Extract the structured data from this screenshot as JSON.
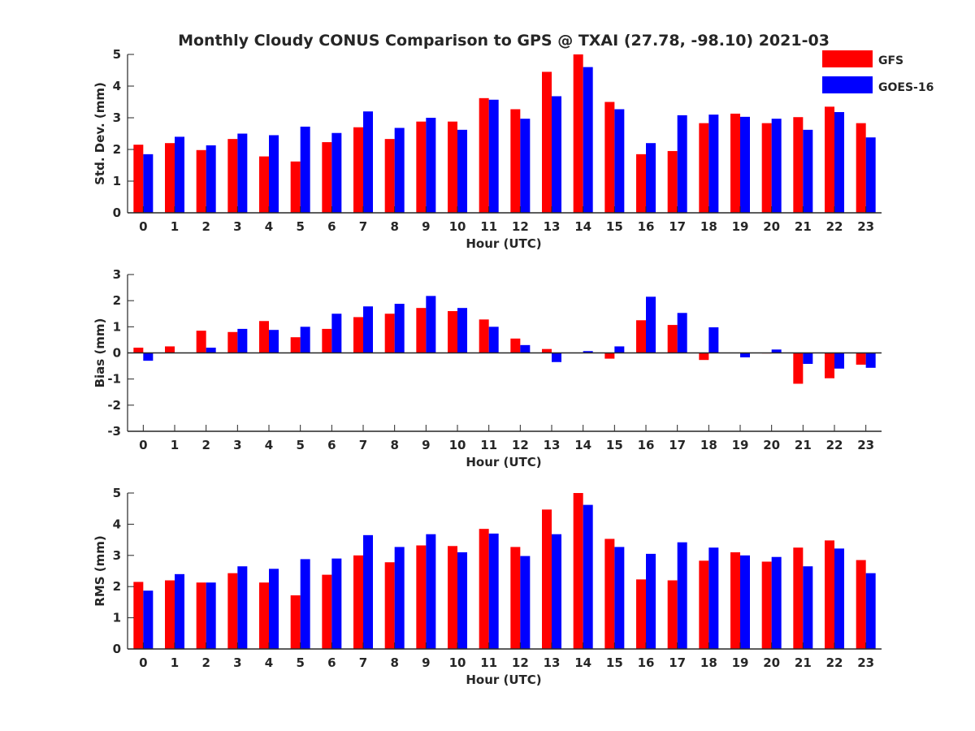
{
  "title": "Monthly Cloudy CONUS Comparison to GPS @ TXAI (27.78, -98.10) 2021-03",
  "legend": [
    {
      "label": "GFS",
      "color": "#ff0000"
    },
    {
      "label": "GOES-16",
      "color": "#0000ff"
    }
  ],
  "chart_data": [
    {
      "type": "bar",
      "name": "std-dev",
      "xlabel": "Hour (UTC)",
      "ylabel": "Std. Dev. (mm)",
      "ylim": [
        0,
        5
      ],
      "yticks": [
        0,
        1,
        2,
        3,
        4,
        5
      ],
      "categories": [
        "0",
        "1",
        "2",
        "3",
        "4",
        "5",
        "6",
        "7",
        "8",
        "9",
        "10",
        "11",
        "12",
        "13",
        "14",
        "15",
        "16",
        "17",
        "18",
        "19",
        "20",
        "21",
        "22",
        "23"
      ],
      "series": [
        {
          "name": "GFS",
          "color": "#ff0000",
          "values": [
            2.15,
            2.2,
            1.98,
            2.33,
            1.78,
            1.62,
            2.23,
            2.7,
            2.33,
            2.88,
            2.88,
            3.62,
            3.27,
            4.45,
            5.0,
            3.5,
            1.85,
            1.95,
            2.83,
            3.13,
            2.83,
            3.02,
            3.35,
            2.83
          ]
        },
        {
          "name": "GOES-16",
          "color": "#0000ff",
          "values": [
            1.85,
            2.4,
            2.13,
            2.5,
            2.45,
            2.72,
            2.52,
            3.2,
            2.68,
            3.0,
            2.62,
            3.57,
            2.97,
            3.68,
            4.6,
            3.27,
            2.2,
            3.08,
            3.1,
            3.03,
            2.97,
            2.62,
            3.18,
            2.38
          ]
        }
      ]
    },
    {
      "type": "bar",
      "name": "bias",
      "xlabel": "Hour (UTC)",
      "ylabel": "Bias (mm)",
      "ylim": [
        -3,
        3
      ],
      "yticks": [
        -3,
        -2,
        -1,
        0,
        1,
        2,
        3
      ],
      "categories": [
        "0",
        "1",
        "2",
        "3",
        "4",
        "5",
        "6",
        "7",
        "8",
        "9",
        "10",
        "11",
        "12",
        "13",
        "14",
        "15",
        "16",
        "17",
        "18",
        "19",
        "20",
        "21",
        "22",
        "23"
      ],
      "series": [
        {
          "name": "GFS",
          "color": "#ff0000",
          "values": [
            0.2,
            0.25,
            0.85,
            0.8,
            1.22,
            0.6,
            0.92,
            1.37,
            1.5,
            1.72,
            1.6,
            1.28,
            0.55,
            0.15,
            0.0,
            -0.22,
            1.25,
            1.07,
            -0.27,
            0.0,
            -0.02,
            -1.18,
            -0.97,
            -0.45
          ]
        },
        {
          "name": "GOES-16",
          "color": "#0000ff",
          "values": [
            -0.3,
            0.0,
            0.2,
            0.92,
            0.88,
            1.0,
            1.5,
            1.78,
            1.88,
            2.18,
            1.72,
            1.0,
            0.3,
            -0.35,
            0.07,
            0.25,
            2.15,
            1.53,
            0.98,
            -0.17,
            0.13,
            -0.42,
            -0.6,
            -0.57
          ]
        }
      ]
    },
    {
      "type": "bar",
      "name": "rms",
      "xlabel": "Hour (UTC)",
      "ylabel": "RMS (mm)",
      "ylim": [
        0,
        5
      ],
      "yticks": [
        0,
        1,
        2,
        3,
        4,
        5
      ],
      "categories": [
        "0",
        "1",
        "2",
        "3",
        "4",
        "5",
        "6",
        "7",
        "8",
        "9",
        "10",
        "11",
        "12",
        "13",
        "14",
        "15",
        "16",
        "17",
        "18",
        "19",
        "20",
        "21",
        "22",
        "23"
      ],
      "series": [
        {
          "name": "GFS",
          "color": "#ff0000",
          "values": [
            2.15,
            2.2,
            2.13,
            2.43,
            2.13,
            1.72,
            2.38,
            3.0,
            2.78,
            3.32,
            3.3,
            3.85,
            3.27,
            4.47,
            5.0,
            3.53,
            2.23,
            2.2,
            2.83,
            3.1,
            2.8,
            3.25,
            3.48,
            2.85
          ]
        },
        {
          "name": "GOES-16",
          "color": "#0000ff",
          "values": [
            1.87,
            2.4,
            2.13,
            2.65,
            2.57,
            2.88,
            2.9,
            3.65,
            3.27,
            3.68,
            3.1,
            3.7,
            2.98,
            3.68,
            4.62,
            3.27,
            3.05,
            3.42,
            3.25,
            3.0,
            2.95,
            2.65,
            3.22,
            2.43
          ]
        }
      ]
    }
  ]
}
